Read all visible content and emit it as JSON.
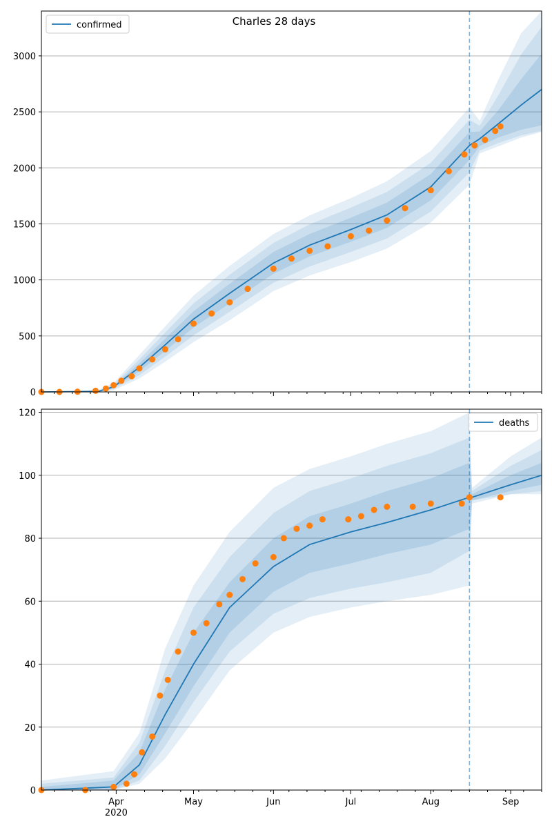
{
  "figure": {
    "title": "Charles 28 days",
    "forecast_start": "2020-08-16",
    "colors": {
      "model": "#1f77b4",
      "observed": "#ff7f0e",
      "band": "#1f77b4",
      "grid": "#b0b0b0",
      "axes": "#000000"
    }
  },
  "chart_data": [
    {
      "type": "line",
      "name": "confirmed",
      "legend": "confirmed",
      "legend_position": "top-left",
      "x_range": [
        "2020-03-03",
        "2020-09-13"
      ],
      "ylim": [
        0,
        3400
      ],
      "y_ticks": [
        0,
        500,
        1000,
        1500,
        2000,
        2500,
        3000
      ],
      "grid": "horizontal",
      "model": [
        {
          "date": "2020-03-03",
          "y": 0,
          "b1": [
            0,
            0
          ],
          "b2": [
            0,
            0
          ],
          "b3": [
            0,
            0
          ]
        },
        {
          "date": "2020-03-25",
          "y": 5,
          "b1": [
            2,
            8
          ],
          "b2": [
            1,
            12
          ],
          "b3": [
            0,
            18
          ]
        },
        {
          "date": "2020-03-31",
          "y": 45,
          "b1": [
            35,
            55
          ],
          "b2": [
            25,
            65
          ],
          "b3": [
            15,
            80
          ]
        },
        {
          "date": "2020-04-10",
          "y": 220,
          "b1": [
            185,
            255
          ],
          "b2": [
            150,
            290
          ],
          "b3": [
            120,
            330
          ]
        },
        {
          "date": "2020-04-20",
          "y": 420,
          "b1": [
            365,
            475
          ],
          "b2": [
            315,
            530
          ],
          "b3": [
            270,
            585
          ]
        },
        {
          "date": "2020-05-01",
          "y": 650,
          "b1": [
            575,
            720
          ],
          "b2": [
            505,
            790
          ],
          "b3": [
            445,
            860
          ]
        },
        {
          "date": "2020-05-15",
          "y": 880,
          "b1": [
            790,
            965
          ],
          "b2": [
            715,
            1045
          ],
          "b3": [
            640,
            1125
          ]
        },
        {
          "date": "2020-06-01",
          "y": 1150,
          "b1": [
            1055,
            1250
          ],
          "b2": [
            975,
            1330
          ],
          "b3": [
            900,
            1410
          ]
        },
        {
          "date": "2020-06-15",
          "y": 1310,
          "b1": [
            1210,
            1410
          ],
          "b2": [
            1120,
            1495
          ],
          "b3": [
            1040,
            1575
          ]
        },
        {
          "date": "2020-07-01",
          "y": 1450,
          "b1": [
            1340,
            1555
          ],
          "b2": [
            1250,
            1645
          ],
          "b3": [
            1160,
            1730
          ]
        },
        {
          "date": "2020-07-15",
          "y": 1580,
          "b1": [
            1465,
            1690
          ],
          "b2": [
            1370,
            1785
          ],
          "b3": [
            1280,
            1880
          ]
        },
        {
          "date": "2020-08-01",
          "y": 1830,
          "b1": [
            1710,
            1945
          ],
          "b2": [
            1610,
            2045
          ],
          "b3": [
            1510,
            2150
          ]
        },
        {
          "date": "2020-08-16",
          "y": 2200,
          "b1": [
            2070,
            2320
          ],
          "b2": [
            1960,
            2430
          ],
          "b3": [
            1850,
            2540
          ]
        },
        {
          "date": "2020-08-20",
          "y": 2260,
          "b1": [
            2195,
            2325
          ],
          "b2": [
            2155,
            2375
          ],
          "b3": [
            2130,
            2420
          ]
        },
        {
          "date": "2020-08-27",
          "y": 2390,
          "b1": [
            2270,
            2510
          ],
          "b2": [
            2220,
            2640
          ],
          "b3": [
            2190,
            2780
          ]
        },
        {
          "date": "2020-09-05",
          "y": 2560,
          "b1": [
            2340,
            2790
          ],
          "b2": [
            2290,
            3010
          ],
          "b3": [
            2270,
            3200
          ]
        },
        {
          "date": "2020-09-13",
          "y": 2700,
          "b1": [
            2380,
            3020
          ],
          "b2": [
            2330,
            3260
          ],
          "b3": [
            2320,
            3420
          ]
        }
      ],
      "observed": [
        {
          "date": "2020-03-03",
          "y": 0
        },
        {
          "date": "2020-03-10",
          "y": 0
        },
        {
          "date": "2020-03-17",
          "y": 2
        },
        {
          "date": "2020-03-24",
          "y": 10
        },
        {
          "date": "2020-03-28",
          "y": 30
        },
        {
          "date": "2020-03-31",
          "y": 60
        },
        {
          "date": "2020-04-03",
          "y": 100
        },
        {
          "date": "2020-04-07",
          "y": 140
        },
        {
          "date": "2020-04-10",
          "y": 210
        },
        {
          "date": "2020-04-15",
          "y": 290
        },
        {
          "date": "2020-04-20",
          "y": 380
        },
        {
          "date": "2020-04-25",
          "y": 470
        },
        {
          "date": "2020-05-01",
          "y": 610
        },
        {
          "date": "2020-05-08",
          "y": 700
        },
        {
          "date": "2020-05-15",
          "y": 800
        },
        {
          "date": "2020-05-22",
          "y": 920
        },
        {
          "date": "2020-06-01",
          "y": 1100
        },
        {
          "date": "2020-06-08",
          "y": 1190
        },
        {
          "date": "2020-06-15",
          "y": 1260
        },
        {
          "date": "2020-06-22",
          "y": 1300
        },
        {
          "date": "2020-07-01",
          "y": 1390
        },
        {
          "date": "2020-07-08",
          "y": 1440
        },
        {
          "date": "2020-07-15",
          "y": 1530
        },
        {
          "date": "2020-07-22",
          "y": 1640
        },
        {
          "date": "2020-08-01",
          "y": 1800
        },
        {
          "date": "2020-08-08",
          "y": 1970
        },
        {
          "date": "2020-08-14",
          "y": 2120
        },
        {
          "date": "2020-08-18",
          "y": 2200
        },
        {
          "date": "2020-08-22",
          "y": 2250
        },
        {
          "date": "2020-08-26",
          "y": 2330
        },
        {
          "date": "2020-08-28",
          "y": 2370
        }
      ]
    },
    {
      "type": "line",
      "name": "deaths",
      "legend": "deaths",
      "legend_position": "top-right",
      "x_range": [
        "2020-03-03",
        "2020-09-13"
      ],
      "ylim": [
        0,
        121
      ],
      "y_ticks": [
        0,
        20,
        40,
        60,
        80,
        100,
        120
      ],
      "x_ticks": [
        {
          "date": "2020-04-01",
          "label": "Apr",
          "sublabel": "2020"
        },
        {
          "date": "2020-05-01",
          "label": "May"
        },
        {
          "date": "2020-06-01",
          "label": "Jun"
        },
        {
          "date": "2020-07-01",
          "label": "Jul"
        },
        {
          "date": "2020-08-01",
          "label": "Aug"
        },
        {
          "date": "2020-09-01",
          "label": "Sep"
        }
      ],
      "grid": "horizontal",
      "model": [
        {
          "date": "2020-03-03",
          "y": 0,
          "b1": [
            0,
            1
          ],
          "b2": [
            0,
            2
          ],
          "b3": [
            0,
            3
          ]
        },
        {
          "date": "2020-03-31",
          "y": 1,
          "b1": [
            0,
            3
          ],
          "b2": [
            0,
            4
          ],
          "b3": [
            0,
            6
          ]
        },
        {
          "date": "2020-04-10",
          "y": 8,
          "b1": [
            5,
            12
          ],
          "b2": [
            3,
            15
          ],
          "b3": [
            2,
            18
          ]
        },
        {
          "date": "2020-04-20",
          "y": 24,
          "b1": [
            18,
            32
          ],
          "b2": [
            14,
            38
          ],
          "b3": [
            10,
            45
          ]
        },
        {
          "date": "2020-05-01",
          "y": 40,
          "b1": [
            33,
            50
          ],
          "b2": [
            28,
            58
          ],
          "b3": [
            22,
            65
          ]
        },
        {
          "date": "2020-05-15",
          "y": 58,
          "b1": [
            50,
            66
          ],
          "b2": [
            44,
            74
          ],
          "b3": [
            38,
            82
          ]
        },
        {
          "date": "2020-06-01",
          "y": 71,
          "b1": [
            63,
            80
          ],
          "b2": [
            56,
            88
          ],
          "b3": [
            50,
            96
          ]
        },
        {
          "date": "2020-06-15",
          "y": 78,
          "b1": [
            69,
            87
          ],
          "b2": [
            61,
            95
          ],
          "b3": [
            55,
            102
          ]
        },
        {
          "date": "2020-07-01",
          "y": 82,
          "b1": [
            72,
            91
          ],
          "b2": [
            64,
            99
          ],
          "b3": [
            58,
            106
          ]
        },
        {
          "date": "2020-07-15",
          "y": 85,
          "b1": [
            75,
            95
          ],
          "b2": [
            66,
            103
          ],
          "b3": [
            60,
            110
          ]
        },
        {
          "date": "2020-08-01",
          "y": 89,
          "b1": [
            78,
            99
          ],
          "b2": [
            69,
            107
          ],
          "b3": [
            62,
            114
          ]
        },
        {
          "date": "2020-08-16",
          "y": 93,
          "b1": [
            83,
            104
          ],
          "b2": [
            76,
            112
          ],
          "b3": [
            65,
            120
          ]
        },
        {
          "date": "2020-08-17",
          "y": 93,
          "b1": [
            92,
            94
          ],
          "b2": [
            92,
            95
          ],
          "b3": [
            91,
            96
          ]
        },
        {
          "date": "2020-09-01",
          "y": 97,
          "b1": [
            95,
            100
          ],
          "b2": [
            94,
            103
          ],
          "b3": [
            94,
            106
          ]
        },
        {
          "date": "2020-09-13",
          "y": 100,
          "b1": [
            97,
            104
          ],
          "b2": [
            95,
            108
          ],
          "b3": [
            94,
            112
          ]
        }
      ],
      "observed": [
        {
          "date": "2020-03-03",
          "y": 0
        },
        {
          "date": "2020-03-20",
          "y": 0
        },
        {
          "date": "2020-03-31",
          "y": 1
        },
        {
          "date": "2020-04-05",
          "y": 2
        },
        {
          "date": "2020-04-08",
          "y": 5
        },
        {
          "date": "2020-04-11",
          "y": 12
        },
        {
          "date": "2020-04-15",
          "y": 17
        },
        {
          "date": "2020-04-18",
          "y": 30
        },
        {
          "date": "2020-04-21",
          "y": 35
        },
        {
          "date": "2020-04-25",
          "y": 44
        },
        {
          "date": "2020-05-01",
          "y": 50
        },
        {
          "date": "2020-05-06",
          "y": 53
        },
        {
          "date": "2020-05-11",
          "y": 59
        },
        {
          "date": "2020-05-15",
          "y": 62
        },
        {
          "date": "2020-05-20",
          "y": 67
        },
        {
          "date": "2020-05-25",
          "y": 72
        },
        {
          "date": "2020-06-01",
          "y": 74
        },
        {
          "date": "2020-06-05",
          "y": 80
        },
        {
          "date": "2020-06-10",
          "y": 83
        },
        {
          "date": "2020-06-15",
          "y": 84
        },
        {
          "date": "2020-06-20",
          "y": 86
        },
        {
          "date": "2020-06-30",
          "y": 86
        },
        {
          "date": "2020-07-05",
          "y": 87
        },
        {
          "date": "2020-07-10",
          "y": 89
        },
        {
          "date": "2020-07-15",
          "y": 90
        },
        {
          "date": "2020-07-25",
          "y": 90
        },
        {
          "date": "2020-08-01",
          "y": 91
        },
        {
          "date": "2020-08-13",
          "y": 91
        },
        {
          "date": "2020-08-16",
          "y": 93
        },
        {
          "date": "2020-08-28",
          "y": 93
        }
      ]
    }
  ]
}
